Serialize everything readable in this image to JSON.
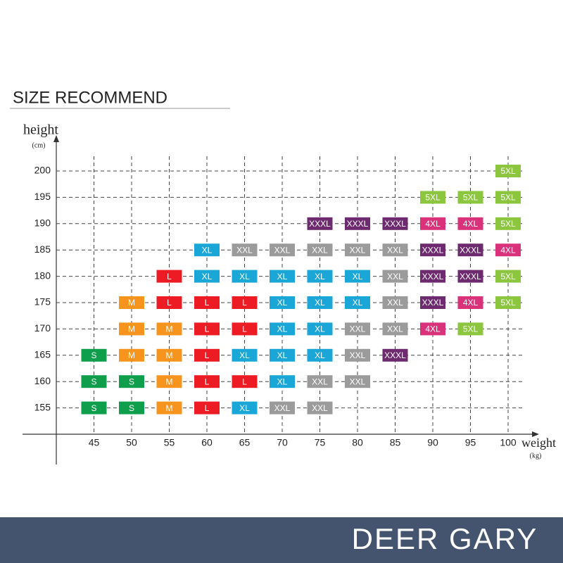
{
  "chart_data": {
    "type": "matrix",
    "title": "SIZE RECOMMEND",
    "y_label": "height",
    "y_unit": "(cm)",
    "x_label": "weight",
    "x_unit": "(kg)",
    "brand": "DEER GARY",
    "xlim": [
      40,
      100
    ],
    "ylim": [
      150,
      200
    ],
    "xticks": [
      45,
      50,
      55,
      60,
      65,
      70,
      75,
      80,
      85,
      90,
      95,
      100
    ],
    "yticks": [
      155,
      160,
      165,
      170,
      175,
      180,
      185,
      190,
      195,
      200
    ],
    "grid": true,
    "colors": {
      "S": "#0f9e4c",
      "M": "#f7941d",
      "L": "#ed1c24",
      "XL": "#1aa6d6",
      "XXL": "#9b9b9b",
      "XXXL": "#6d2a6e",
      "4XL": "#d9317a",
      "5XL": "#8cc63f"
    },
    "cells": [
      {
        "x": 100,
        "y": 200,
        "label": "5XL"
      },
      {
        "x": 90,
        "y": 195,
        "label": "5XL"
      },
      {
        "x": 95,
        "y": 195,
        "label": "5XL"
      },
      {
        "x": 100,
        "y": 195,
        "label": "5XL"
      },
      {
        "x": 75,
        "y": 190,
        "label": "XXXL"
      },
      {
        "x": 80,
        "y": 190,
        "label": "XXXL"
      },
      {
        "x": 85,
        "y": 190,
        "label": "XXXL"
      },
      {
        "x": 90,
        "y": 190,
        "label": "4XL"
      },
      {
        "x": 95,
        "y": 190,
        "label": "4XL"
      },
      {
        "x": 100,
        "y": 190,
        "label": "5XL"
      },
      {
        "x": 60,
        "y": 185,
        "label": "XL"
      },
      {
        "x": 65,
        "y": 185,
        "label": "XXL"
      },
      {
        "x": 70,
        "y": 185,
        "label": "XXL"
      },
      {
        "x": 75,
        "y": 185,
        "label": "XXL"
      },
      {
        "x": 80,
        "y": 185,
        "label": "XXL"
      },
      {
        "x": 85,
        "y": 185,
        "label": "XXL"
      },
      {
        "x": 90,
        "y": 185,
        "label": "XXXL"
      },
      {
        "x": 95,
        "y": 185,
        "label": "XXXL"
      },
      {
        "x": 100,
        "y": 185,
        "label": "4XL"
      },
      {
        "x": 55,
        "y": 180,
        "label": "L"
      },
      {
        "x": 60,
        "y": 180,
        "label": "XL"
      },
      {
        "x": 65,
        "y": 180,
        "label": "XL"
      },
      {
        "x": 70,
        "y": 180,
        "label": "XL"
      },
      {
        "x": 75,
        "y": 180,
        "label": "XL"
      },
      {
        "x": 80,
        "y": 180,
        "label": "XL"
      },
      {
        "x": 85,
        "y": 180,
        "label": "XXL"
      },
      {
        "x": 90,
        "y": 180,
        "label": "XXXL"
      },
      {
        "x": 95,
        "y": 180,
        "label": "XXXL"
      },
      {
        "x": 100,
        "y": 180,
        "label": "5XL"
      },
      {
        "x": 50,
        "y": 175,
        "label": "M"
      },
      {
        "x": 55,
        "y": 175,
        "label": "L"
      },
      {
        "x": 60,
        "y": 175,
        "label": "L"
      },
      {
        "x": 65,
        "y": 175,
        "label": "L"
      },
      {
        "x": 70,
        "y": 175,
        "label": "XL"
      },
      {
        "x": 75,
        "y": 175,
        "label": "XL"
      },
      {
        "x": 80,
        "y": 175,
        "label": "XL"
      },
      {
        "x": 85,
        "y": 175,
        "label": "XXL"
      },
      {
        "x": 90,
        "y": 175,
        "label": "XXXL"
      },
      {
        "x": 95,
        "y": 175,
        "label": "4XL"
      },
      {
        "x": 100,
        "y": 175,
        "label": "5XL"
      },
      {
        "x": 50,
        "y": 170,
        "label": "M"
      },
      {
        "x": 55,
        "y": 170,
        "label": "M"
      },
      {
        "x": 60,
        "y": 170,
        "label": "L"
      },
      {
        "x": 65,
        "y": 170,
        "label": "L"
      },
      {
        "x": 70,
        "y": 170,
        "label": "XL"
      },
      {
        "x": 75,
        "y": 170,
        "label": "XL"
      },
      {
        "x": 80,
        "y": 170,
        "label": "XXL"
      },
      {
        "x": 85,
        "y": 170,
        "label": "XXL"
      },
      {
        "x": 90,
        "y": 170,
        "label": "4XL"
      },
      {
        "x": 95,
        "y": 170,
        "label": "5XL"
      },
      {
        "x": 45,
        "y": 165,
        "label": "S"
      },
      {
        "x": 50,
        "y": 165,
        "label": "M"
      },
      {
        "x": 55,
        "y": 165,
        "label": "M"
      },
      {
        "x": 60,
        "y": 165,
        "label": "L"
      },
      {
        "x": 65,
        "y": 165,
        "label": "XL"
      },
      {
        "x": 70,
        "y": 165,
        "label": "XL"
      },
      {
        "x": 75,
        "y": 165,
        "label": "XL"
      },
      {
        "x": 80,
        "y": 165,
        "label": "XXL"
      },
      {
        "x": 85,
        "y": 165,
        "label": "XXXL"
      },
      {
        "x": 45,
        "y": 160,
        "label": "S"
      },
      {
        "x": 50,
        "y": 160,
        "label": "S"
      },
      {
        "x": 55,
        "y": 160,
        "label": "M"
      },
      {
        "x": 60,
        "y": 160,
        "label": "L"
      },
      {
        "x": 65,
        "y": 160,
        "label": "L"
      },
      {
        "x": 70,
        "y": 160,
        "label": "XL"
      },
      {
        "x": 75,
        "y": 160,
        "label": "XXL"
      },
      {
        "x": 80,
        "y": 160,
        "label": "XXL"
      },
      {
        "x": 45,
        "y": 155,
        "label": "S"
      },
      {
        "x": 50,
        "y": 155,
        "label": "S"
      },
      {
        "x": 55,
        "y": 155,
        "label": "M"
      },
      {
        "x": 60,
        "y": 155,
        "label": "L"
      },
      {
        "x": 65,
        "y": 155,
        "label": "XL"
      },
      {
        "x": 70,
        "y": 155,
        "label": "XXL"
      },
      {
        "x": 75,
        "y": 155,
        "label": "XXL"
      }
    ]
  }
}
